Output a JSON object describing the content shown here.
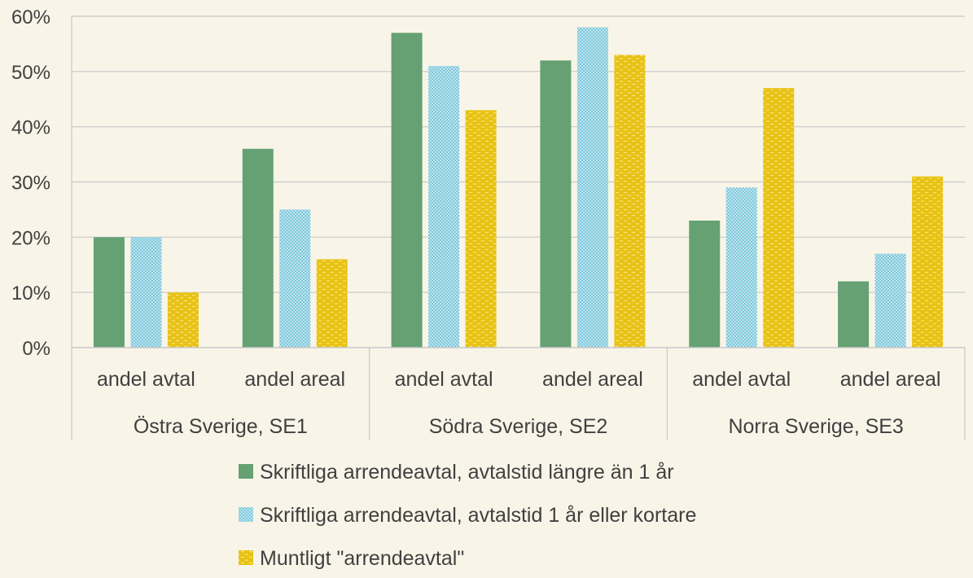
{
  "chart_data": {
    "type": "bar",
    "groups": [
      {
        "label": "Östra Sverige, SE1",
        "categories": [
          "andel avtal",
          "andel areal"
        ]
      },
      {
        "label": "Södra Sverige, SE2",
        "categories": [
          "andel avtal",
          "andel areal"
        ]
      },
      {
        "label": "Norra Sverige, SE3",
        "categories": [
          "andel avtal",
          "andel areal"
        ]
      }
    ],
    "series": [
      {
        "name": "Skriftliga arrendeavtal, avtalstid längre än 1 år",
        "color": "#65a172",
        "pattern": "solid",
        "values": [
          20,
          36,
          57,
          52,
          23,
          12
        ]
      },
      {
        "name": "Skriftliga arrendeavtal, avtalstid 1 år eller kortare",
        "color": "#7fc9dc",
        "pattern": "dots",
        "values": [
          20,
          25,
          51,
          58,
          29,
          17
        ]
      },
      {
        "name": "Muntligt \"arrendeavtal\"",
        "color": "#e8c214",
        "pattern": "dashes",
        "values": [
          10,
          16,
          43,
          53,
          47,
          31
        ]
      }
    ],
    "ylim": [
      0,
      60
    ],
    "yticks": [
      "0%",
      "10%",
      "20%",
      "30%",
      "40%",
      "50%",
      "60%"
    ],
    "grid": true,
    "legend_position": "bottom",
    "colors": {
      "background": "#f8f5e8",
      "grid": "#c8c8c8",
      "text": "#404040"
    }
  }
}
